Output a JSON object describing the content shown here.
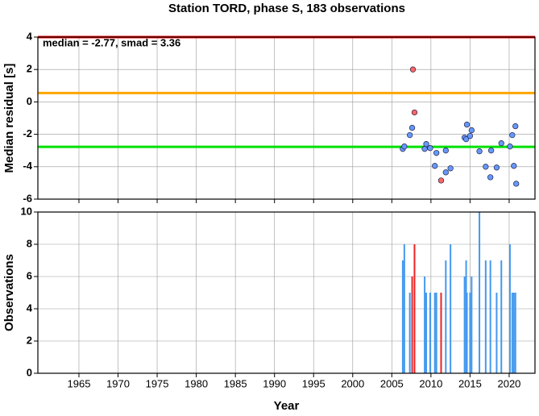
{
  "chart_data": [
    {
      "type": "scatter",
      "title": "Station TORD, phase S, 183 observations",
      "annotation": "median = -2.77, smad = 3.36",
      "ylabel": "Median residual [s]",
      "xlim": [
        1959.75,
        2023.3
      ],
      "ylim": [
        -6,
        4
      ],
      "yticks": [
        -6,
        -4,
        -2,
        0,
        2,
        4
      ],
      "xticks": [
        1965,
        1970,
        1975,
        1980,
        1985,
        1990,
        1995,
        2000,
        2005,
        2010,
        2015,
        2020
      ],
      "grid": true,
      "reference_lines": [
        {
          "value": 4,
          "color": "#ff0000"
        },
        {
          "value": 0.55,
          "color": "#ffa500"
        },
        {
          "value": -2.77,
          "color": "#00e000"
        }
      ],
      "series": [
        {
          "color": "#6699ff",
          "x": [
            2006.4,
            2006.6,
            2007.3,
            2007.6,
            2009.2,
            2009.4,
            2009.9,
            2010.5,
            2010.7,
            2011.9,
            2011.9,
            2012.5,
            2014.3,
            2014.5,
            2014.6,
            2015.0,
            2015.2,
            2016.2,
            2017.0,
            2017.6,
            2017.7,
            2018.4,
            2019.0,
            2020.1,
            2020.4,
            2020.6,
            2020.8,
            2020.9
          ],
          "values": [
            -2.9,
            -2.75,
            -2.05,
            -1.6,
            -2.9,
            -2.6,
            -2.85,
            -3.95,
            -3.15,
            -4.35,
            -3.0,
            -4.1,
            -2.2,
            -2.3,
            -1.4,
            -2.1,
            -1.75,
            -3.05,
            -4.0,
            -4.65,
            -3.0,
            -4.05,
            -2.55,
            -2.75,
            -2.05,
            -3.95,
            -1.5,
            -5.05
          ]
        },
        {
          "color": "#ff6666",
          "x": [
            2007.7,
            2007.9,
            2011.3
          ],
          "values": [
            2.0,
            -0.65,
            -4.85
          ]
        }
      ]
    },
    {
      "type": "bar",
      "ylabel": "Observations",
      "xlabel": "Year",
      "xlim": [
        1959.75,
        2023.3
      ],
      "ylim": [
        0,
        10
      ],
      "yticks": [
        0,
        2,
        4,
        6,
        8,
        10
      ],
      "xticks": [
        1965,
        1970,
        1975,
        1980,
        1985,
        1990,
        1995,
        2000,
        2005,
        2010,
        2015,
        2020
      ],
      "grid": true,
      "series": [
        {
          "color": "#4499ee",
          "x": [
            2006.4,
            2006.6,
            2007.3,
            2009.2,
            2009.4,
            2009.9,
            2010.5,
            2010.7,
            2011.9,
            2012.5,
            2014.3,
            2014.5,
            2014.6,
            2015.0,
            2015.2,
            2016.2,
            2017.0,
            2017.6,
            2018.4,
            2019.0,
            2020.1,
            2020.4,
            2020.6,
            2020.8
          ],
          "values": [
            7,
            8,
            5,
            6,
            5,
            5,
            5,
            5,
            7,
            8,
            6,
            7,
            5,
            5,
            6,
            10,
            7,
            7,
            5,
            7,
            8,
            5,
            5,
            5
          ]
        },
        {
          "color": "#ee2222",
          "x": [
            2007.6,
            2007.9,
            2011.3
          ],
          "values": [
            6,
            8,
            5
          ]
        }
      ]
    }
  ]
}
